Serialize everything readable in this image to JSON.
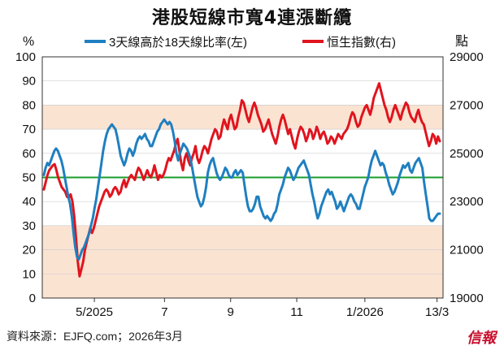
{
  "title": "港股短線市寬4連漲斷纜",
  "source": "資料來源：EJFQ.com；2026年3月",
  "logo": "信報",
  "colors": {
    "breadth": "#1f7fc0",
    "hsi": "#e0141e",
    "band": "#fbe3d2",
    "midline": "#1a9c2c",
    "grid": "#cfcfcf"
  },
  "chart_data": {
    "type": "line",
    "left_axis_unit": "%",
    "right_axis_unit": "點",
    "left_axis": {
      "ylim": [
        0,
        100
      ],
      "ticks": [
        "0",
        "10",
        "20",
        "30",
        "40",
        "50",
        "60",
        "70",
        "80",
        "90",
        "100"
      ]
    },
    "right_axis": {
      "ylim": [
        19000,
        29000
      ],
      "ticks": [
        "19000",
        "21000",
        "23000",
        "25000",
        "27000",
        "29000"
      ]
    },
    "x_tick_labels": [
      "5/2025",
      "7",
      "9",
      "11",
      "1/2026",
      "13/3"
    ],
    "shaded_bands": [
      [
        0,
        30
      ],
      [
        70,
        80
      ]
    ],
    "reference_line": 50,
    "legend": [
      "3天線高於18天線比率(左)",
      "恒生指數(右)"
    ],
    "series": [
      {
        "name": "3天線高於18天線比率(左)",
        "axis": "left",
        "values": [
          51,
          54,
          56,
          55,
          57,
          59,
          61,
          62,
          61,
          59,
          57,
          54,
          50,
          46,
          42,
          39,
          34,
          27,
          21,
          17,
          16,
          18,
          20,
          21,
          23,
          25,
          27,
          30,
          33,
          37,
          41,
          46,
          51,
          56,
          61,
          65,
          68,
          70,
          71,
          72,
          71,
          70,
          67,
          63,
          59,
          57,
          55,
          57,
          60,
          62,
          61,
          59,
          61,
          64,
          66,
          67,
          66,
          67,
          68,
          66,
          65,
          63,
          63,
          65,
          67,
          69,
          70,
          72,
          73,
          74,
          73,
          72,
          73,
          72,
          69,
          65,
          60,
          57,
          60,
          62,
          64,
          63,
          62,
          60,
          58,
          54,
          50,
          46,
          42,
          40,
          38,
          39,
          42,
          46,
          52,
          55,
          57,
          58,
          55,
          52,
          50,
          49,
          50,
          52,
          54,
          53,
          51,
          50,
          50,
          52,
          53,
          51,
          52,
          53,
          52,
          47,
          42,
          38,
          36,
          36,
          37,
          39,
          42,
          42,
          38,
          36,
          34,
          33,
          34,
          33,
          32,
          33,
          35,
          36,
          39,
          43,
          45,
          47,
          50,
          52,
          54,
          53,
          51,
          49,
          50,
          52,
          54,
          55,
          56,
          57,
          55,
          53,
          51,
          47,
          43,
          40,
          36,
          33,
          35,
          38,
          40,
          42,
          44,
          45,
          43,
          44,
          42,
          40,
          37,
          38,
          40,
          38,
          36,
          38,
          40,
          42,
          43,
          42,
          40,
          39,
          37,
          37,
          40,
          43,
          46,
          48,
          50,
          54,
          57,
          59,
          61,
          59,
          57,
          55,
          56,
          55,
          52,
          50,
          47,
          45,
          43,
          44,
          46,
          48,
          51,
          53,
          55,
          54,
          55,
          56,
          53,
          52,
          54,
          56,
          57,
          58,
          56,
          54,
          48,
          43,
          38,
          33,
          32,
          32,
          33,
          34,
          35,
          35
        ]
      },
      {
        "name": "恒生指數(右)",
        "axis": "right",
        "values": [
          23500,
          23800,
          24100,
          24300,
          24400,
          24500,
          24550,
          24300,
          24000,
          23800,
          23600,
          23500,
          23400,
          23200,
          23150,
          23300,
          23000,
          22400,
          21500,
          20500,
          19900,
          20200,
          20500,
          21000,
          21300,
          21600,
          21900,
          21700,
          21900,
          22200,
          22500,
          22800,
          23000,
          23200,
          23400,
          23500,
          23400,
          23200,
          23300,
          23500,
          23600,
          23500,
          23300,
          23400,
          23700,
          23900,
          23600,
          23800,
          24000,
          24100,
          24000,
          23900,
          24200,
          24400,
          24300,
          24100,
          23900,
          24100,
          24300,
          24100,
          24000,
          24200,
          24500,
          24200,
          23900,
          24100,
          24000,
          24100,
          24300,
          24600,
          24800,
          24700,
          24900,
          25100,
          25400,
          25600,
          25100,
          24600,
          24300,
          24800,
          25000,
          24700,
          24500,
          24800,
          25000,
          25300,
          24800,
          24600,
          24800,
          25100,
          25300,
          25200,
          25000,
          25300,
          25600,
          25800,
          26000,
          25900,
          25600,
          25700,
          26100,
          26400,
          26200,
          26000,
          26400,
          26600,
          26300,
          26000,
          26100,
          26500,
          26800,
          27200,
          27100,
          26800,
          26500,
          26300,
          26600,
          26900,
          27100,
          26900,
          26600,
          26400,
          26200,
          25900,
          26000,
          26200,
          26400,
          26100,
          25800,
          25600,
          25400,
          25700,
          26100,
          26400,
          26600,
          26400,
          26100,
          25800,
          26000,
          25700,
          25400,
          25200,
          25600,
          25900,
          26100,
          26000,
          25800,
          25500,
          25700,
          26000,
          25900,
          25600,
          25800,
          26100,
          25900,
          25600,
          25800,
          25900,
          25700,
          25400,
          25500,
          25700,
          25600,
          25400,
          25600,
          25800,
          25700,
          25600,
          25800,
          25900,
          26000,
          26200,
          26500,
          26700,
          26600,
          26300,
          26100,
          26200,
          26500,
          26700,
          26900,
          27000,
          26800,
          26600,
          26900,
          27300,
          27500,
          27700,
          27900,
          27600,
          27300,
          27000,
          26800,
          26500,
          26300,
          26500,
          26800,
          27000,
          26800,
          26600,
          26400,
          26700,
          26900,
          27100,
          27000,
          26700,
          26500,
          26400,
          26300,
          26600,
          26800,
          26500,
          26300,
          26200,
          25900,
          25600,
          25300,
          25500,
          25800,
          25700,
          25400,
          25700,
          25500
        ]
      }
    ]
  }
}
